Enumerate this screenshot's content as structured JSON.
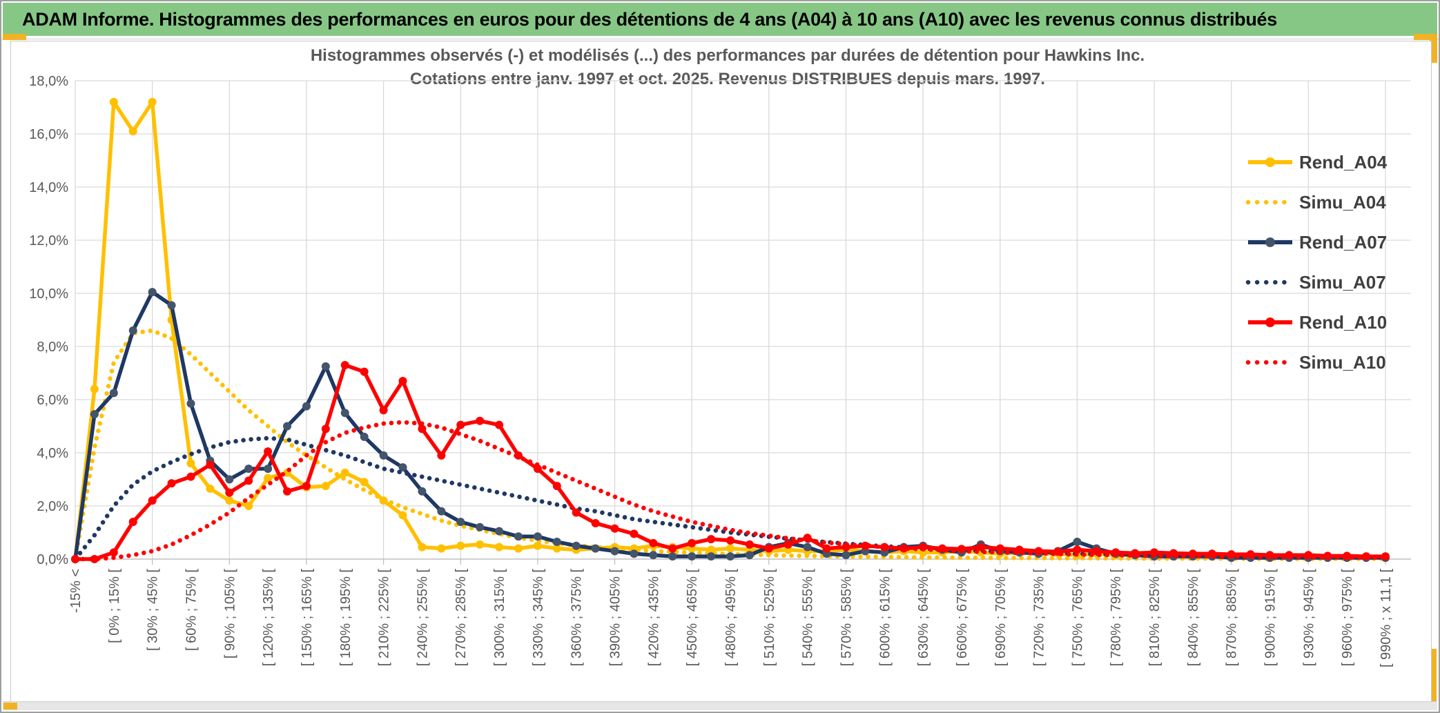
{
  "header": {
    "title": "ADAM Informe. Histogrammes des performances en euros pour des détentions de 4 ans (A04) à 10 ans (A10) avec les revenus connus distribués"
  },
  "colors": {
    "header_bg": "#86c786",
    "accent_gold": "#f0b323",
    "grid": "#d9d9d9",
    "axis_line": "#bfbfbf",
    "axis_text": "#595959",
    "title_text": "#595959",
    "legend_text": "#3f3f3f",
    "gold": "#ffc000",
    "navy": "#1f3864",
    "navy_marker": "#44546a",
    "red": "#ff0000"
  },
  "chart_data": {
    "type": "line",
    "title_line1": "Histogrammes observés (-) et modélisés (...) des performances par durées de détention pour Hawkins Inc.",
    "title_line2": "Cotations entre janv. 1997 et oct. 2025. Revenus DISTRIBUES depuis mars. 1997.",
    "ylim": [
      0,
      18
    ],
    "ytick_step": 2,
    "ytick_labels": [
      "0,0%",
      "2,0%",
      "4,0%",
      "6,0%",
      "8,0%",
      "10,0%",
      "12,0%",
      "14,0%",
      "16,0%",
      "18,0%"
    ],
    "grid": true,
    "legend_position": "right",
    "xtick_every": 2,
    "categories": [
      "-15% <",
      "[ -15% ; 0% [",
      "[ 0% ; 15% [",
      "[ 15% ; 30% [",
      "[ 30% ; 45% [",
      "[ 45% ; 60% [",
      "[ 60% ; 75% [",
      "[ 75% ; 90% [",
      "[ 90% ; 105% [",
      "[ 105% ; 120% [",
      "[ 120% ; 135% [",
      "[ 135% ; 150% [",
      "[ 150% ; 165% [",
      "[ 165% ; 180% [",
      "[ 180% ; 195% [",
      "[ 195% ; 210% [",
      "[ 210% ; 225% [",
      "[ 225% ; 240% [",
      "[ 240% ; 255% [",
      "[ 255% ; 270% [",
      "[ 270% ; 285% [",
      "[ 285% ; 300% [",
      "[ 300% ; 315% [",
      "[ 315% ; 330% [",
      "[ 330% ; 345% [",
      "[ 345% ; 360% [",
      "[ 360% ; 375% [",
      "[ 375% ; 390% [",
      "[ 390% ; 405% [",
      "[ 405% ; 420% [",
      "[ 420% ; 435% [",
      "[ 435% ; 450% [",
      "[ 450% ; 465% [",
      "[ 465% ; 480% [",
      "[ 480% ; 495% [",
      "[ 495% ; 510% [",
      "[ 510% ; 525% [",
      "[ 525% ; 540% [",
      "[ 540% ; 555% [",
      "[ 555% ; 570% [",
      "[ 570% ; 585% [",
      "[ 585% ; 600% [",
      "[ 600% ; 615% [",
      "[ 615% ; 630% [",
      "[ 630% ; 645% [",
      "[ 645% ; 660% [",
      "[ 660% ; 675% [",
      "[ 675% ; 690% [",
      "[ 690% ; 705% [",
      "[ 705% ; 720% [",
      "[ 720% ; 735% [",
      "[ 735% ; 750% [",
      "[ 750% ; 765% [",
      "[ 765% ; 780% [",
      "[ 780% ; 795% [",
      "[ 795% ; 810% [",
      "[ 810% ; 825% [",
      "[ 825% ; 840% [",
      "[ 840% ; 855% [",
      "[ 855% ; 870% [",
      "[ 870% ; 885% [",
      "[ 885% ; 900% [",
      "[ 900% ; 915% [",
      "[ 915% ; 930% [",
      "[ 930% ; 945% [",
      "[ 945% ; 960% [",
      "[ 960% ; 975% [",
      "[ 975% ; 990% [",
      "[ 990% ; x 11,1 ["
    ],
    "series": [
      {
        "name": "Rend_A04",
        "style": "solid",
        "color_key": "gold",
        "marker_key": "gold",
        "values": [
          0,
          6.4,
          17.2,
          16.1,
          17.2,
          9.0,
          3.6,
          2.65,
          2.2,
          2.0,
          3.05,
          3.25,
          2.7,
          2.75,
          3.25,
          2.9,
          2.2,
          1.65,
          0.45,
          0.4,
          0.5,
          0.55,
          0.45,
          0.4,
          0.5,
          0.4,
          0.35,
          0.4,
          0.45,
          0.4,
          0.5,
          0.45,
          0.4,
          0.35,
          0.4,
          0.35,
          0.3,
          0.35,
          0.3,
          0.3,
          0.35,
          0.3,
          0.25,
          0.3,
          0.25,
          0.25,
          0.3,
          0.25,
          0.2,
          0.25,
          0.2,
          0.2,
          0.15,
          0.2,
          0.15,
          0.15,
          0.1,
          0.15,
          0.1,
          0.1,
          0.1,
          0.1,
          0.05,
          0.1,
          0.05,
          0.05,
          0.05,
          0.05,
          0.05
        ]
      },
      {
        "name": "Simu_A04",
        "style": "dotted",
        "color_key": "gold",
        "values": [
          0,
          4.2,
          7.4,
          8.5,
          8.6,
          8.3,
          7.7,
          7.0,
          6.3,
          5.6,
          5.0,
          4.4,
          3.9,
          3.45,
          3.0,
          2.6,
          2.25,
          1.95,
          1.7,
          1.45,
          1.25,
          1.1,
          0.95,
          0.8,
          0.7,
          0.6,
          0.52,
          0.45,
          0.4,
          0.35,
          0.3,
          0.27,
          0.24,
          0.21,
          0.19,
          0.17,
          0.15,
          0.13,
          0.12,
          0.11,
          0.1,
          0.09,
          0.08,
          0.07,
          0.06,
          0.06,
          0.05,
          0.05,
          0.04,
          0.04,
          0.04,
          0.03,
          0.03,
          0.03,
          0.03,
          0.02,
          0.02,
          0.02,
          0.02,
          0.02,
          0.02,
          0.01,
          0.01,
          0.01,
          0.01,
          0.01,
          0.01,
          0.01,
          0.01
        ]
      },
      {
        "name": "Rend_A07",
        "style": "solid",
        "color_key": "navy",
        "marker_key": "navy_marker",
        "values": [
          0,
          5.45,
          6.25,
          8.6,
          10.05,
          9.55,
          5.85,
          3.7,
          3.0,
          3.4,
          3.4,
          5.0,
          5.75,
          7.25,
          5.5,
          4.6,
          3.9,
          3.45,
          2.55,
          1.8,
          1.4,
          1.2,
          1.05,
          0.85,
          0.85,
          0.65,
          0.5,
          0.4,
          0.3,
          0.2,
          0.15,
          0.1,
          0.1,
          0.1,
          0.1,
          0.15,
          0.45,
          0.6,
          0.45,
          0.2,
          0.15,
          0.3,
          0.25,
          0.45,
          0.5,
          0.35,
          0.25,
          0.55,
          0.3,
          0.25,
          0.2,
          0.3,
          0.65,
          0.4,
          0.2,
          0.15,
          0.1,
          0.1,
          0.1,
          0.1,
          0.05,
          0.05,
          0.05,
          0.05,
          0.05,
          0.05,
          0.05,
          0.05,
          0.05
        ]
      },
      {
        "name": "Simu_A07",
        "style": "dotted",
        "color_key": "navy",
        "values": [
          0,
          0.9,
          2.0,
          2.8,
          3.3,
          3.65,
          3.95,
          4.2,
          4.4,
          4.5,
          4.55,
          4.5,
          4.3,
          4.1,
          3.9,
          3.65,
          3.4,
          3.25,
          3.1,
          2.95,
          2.8,
          2.65,
          2.5,
          2.35,
          2.2,
          2.05,
          1.9,
          1.8,
          1.65,
          1.5,
          1.4,
          1.3,
          1.2,
          1.1,
          1.0,
          0.92,
          0.84,
          0.77,
          0.7,
          0.64,
          0.58,
          0.53,
          0.48,
          0.44,
          0.4,
          0.37,
          0.34,
          0.31,
          0.28,
          0.26,
          0.24,
          0.22,
          0.2,
          0.19,
          0.17,
          0.16,
          0.15,
          0.14,
          0.13,
          0.12,
          0.11,
          0.1,
          0.1,
          0.09,
          0.09,
          0.08,
          0.08,
          0.07,
          0.07
        ]
      },
      {
        "name": "Rend_A10",
        "style": "solid",
        "color_key": "red",
        "marker_key": "red",
        "values": [
          0,
          0,
          0.25,
          1.4,
          2.2,
          2.85,
          3.1,
          3.55,
          2.5,
          2.95,
          4.05,
          2.55,
          2.75,
          4.9,
          7.3,
          7.05,
          5.6,
          6.7,
          4.9,
          3.9,
          5.05,
          5.2,
          5.05,
          3.9,
          3.4,
          2.75,
          1.75,
          1.35,
          1.15,
          0.95,
          0.6,
          0.4,
          0.6,
          0.75,
          0.7,
          0.55,
          0.4,
          0.55,
          0.8,
          0.4,
          0.45,
          0.5,
          0.45,
          0.4,
          0.45,
          0.4,
          0.38,
          0.45,
          0.4,
          0.35,
          0.3,
          0.28,
          0.35,
          0.3,
          0.25,
          0.22,
          0.25,
          0.22,
          0.2,
          0.2,
          0.18,
          0.18,
          0.15,
          0.15,
          0.15,
          0.12,
          0.12,
          0.1,
          0.1
        ]
      },
      {
        "name": "Simu_A10",
        "style": "dotted",
        "color_key": "red",
        "values": [
          0,
          0,
          0.05,
          0.15,
          0.3,
          0.55,
          0.9,
          1.3,
          1.75,
          2.3,
          2.8,
          3.3,
          3.9,
          4.4,
          4.75,
          4.95,
          5.1,
          5.15,
          5.1,
          4.95,
          4.7,
          4.45,
          4.15,
          3.85,
          3.55,
          3.25,
          2.95,
          2.65,
          2.35,
          2.05,
          1.8,
          1.6,
          1.4,
          1.25,
          1.1,
          0.98,
          0.88,
          0.78,
          0.7,
          0.62,
          0.56,
          0.5,
          0.45,
          0.4,
          0.37,
          0.33,
          0.3,
          0.27,
          0.25,
          0.23,
          0.21,
          0.19,
          0.17,
          0.16,
          0.15,
          0.13,
          0.12,
          0.11,
          0.11,
          0.1,
          0.09,
          0.09,
          0.08,
          0.08,
          0.07,
          0.07,
          0.06,
          0.06,
          0.06
        ]
      }
    ]
  }
}
